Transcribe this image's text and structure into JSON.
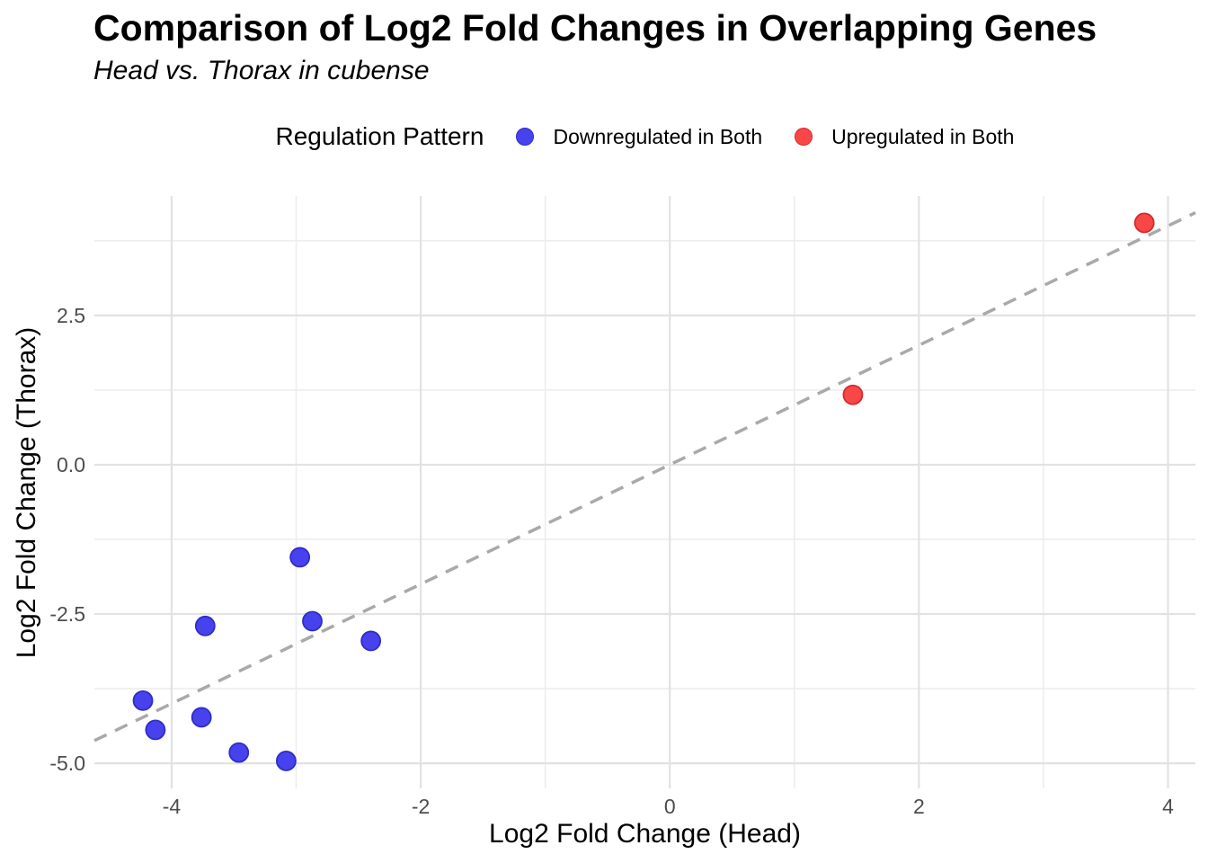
{
  "header": {
    "title": "Comparison of Log2 Fold Changes in Overlapping Genes",
    "subtitle": "Head vs. Thorax in cubense"
  },
  "legend": {
    "title": "Regulation Pattern",
    "items": [
      {
        "label": "Downregulated in Both",
        "color": "#4742ee"
      },
      {
        "label": "Upregulated in Both",
        "color": "#f94747"
      }
    ]
  },
  "chart_data": {
    "type": "scatter",
    "title": "Comparison of Log2 Fold Changes in Overlapping Genes",
    "subtitle": "Head vs. Thorax in cubense",
    "xlabel": "Log2 Fold Change (Head)",
    "ylabel": "Log2 Fold Change (Thorax)",
    "xlim": [
      -4.62,
      4.22
    ],
    "ylim": [
      -5.42,
      4.5
    ],
    "x_ticks": {
      "values": [
        -4,
        -2,
        0,
        2,
        4
      ],
      "labels": [
        "-4",
        "-2",
        "0",
        "2",
        "4"
      ]
    },
    "y_ticks": {
      "values": [
        2.5,
        0,
        -2.5,
        -5
      ],
      "labels": [
        "2.5",
        "0.0",
        "-2.5",
        "-5.0"
      ]
    },
    "x_minor": [
      -3,
      -1,
      1,
      3
    ],
    "y_minor": [
      3.75,
      1.25,
      -1.25,
      -3.75
    ],
    "grid": true,
    "legend_position": "top",
    "legend_title": "Regulation Pattern",
    "reference_line": {
      "type": "identity y=x",
      "style": "dashed",
      "color": "#a9a9a9"
    },
    "colors": {
      "major_grid": "#e2e2e2",
      "minor_grid": "#ededed",
      "tick_text": "#4d4d4d"
    },
    "series": [
      {
        "name": "Downregulated in Both",
        "color": "#4742ee",
        "stroke": "#2e2ec4",
        "points": [
          [
            -4.23,
            -3.95
          ],
          [
            -4.13,
            -4.44
          ],
          [
            -3.76,
            -4.23
          ],
          [
            -3.73,
            -2.7
          ],
          [
            -3.46,
            -4.82
          ],
          [
            -3.08,
            -4.96
          ],
          [
            -2.97,
            -1.55
          ],
          [
            -2.87,
            -2.62
          ],
          [
            -2.4,
            -2.95
          ]
        ]
      },
      {
        "name": "Upregulated in Both",
        "color": "#f94747",
        "stroke": "#d42b2b",
        "points": [
          [
            1.47,
            1.17
          ],
          [
            3.81,
            4.05
          ]
        ]
      }
    ]
  }
}
